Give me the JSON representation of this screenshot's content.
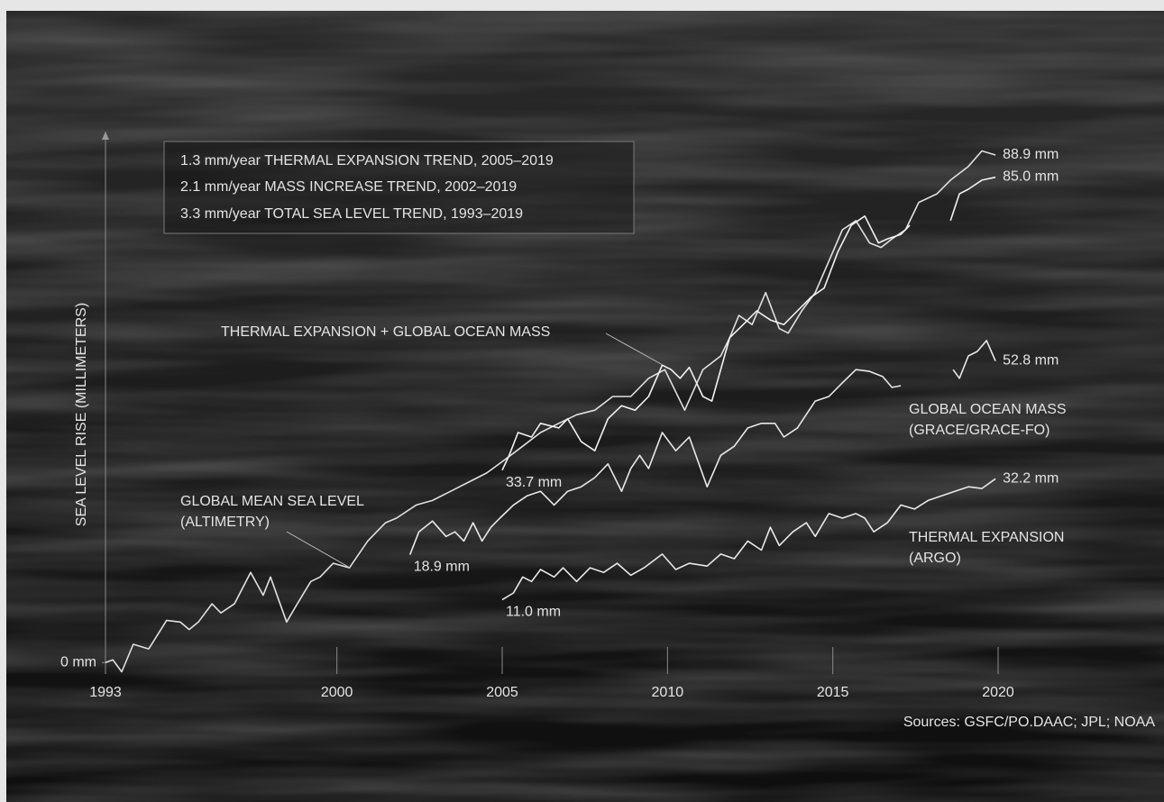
{
  "chart_data": {
    "type": "line",
    "y_label": "SEA LEVEL RISE (MILLIMETERS)",
    "info_box": [
      "1.3 mm/year THERMAL EXPANSION TREND, 2005–2019",
      "2.1 mm/year MASS INCREASE TREND, 2002–2019",
      "3.3 mm/year TOTAL SEA LEVEL TREND, 1993–2019"
    ],
    "source": "Sources: GSFC/PO.DAAC; JPL; NOAA",
    "xlim": [
      1993,
      2020
    ],
    "xticks": [
      1993,
      2000,
      2005,
      2010,
      2015,
      2020
    ],
    "ylim": [
      -2,
      93
    ],
    "yticks": [
      {
        "value": 0,
        "label": "0 mm"
      }
    ],
    "series": [
      {
        "label_lines": [
          "GLOBAL MEAN SEA LEVEL",
          "(ALTIMETRY)"
        ],
        "color": "#e0e0e0",
        "x": [
          1993.0,
          1993.22,
          1993.49,
          1993.84,
          1994.31,
          1994.85,
          1995.26,
          1995.53,
          1995.81,
          1996.22,
          1996.49,
          1996.9,
          1997.39,
          1997.77,
          1997.99,
          1998.48,
          1998.8,
          1999.21,
          1999.49,
          1999.89,
          2000.38,
          2000.93,
          2001.47,
          2001.8,
          2002.4,
          2002.89,
          2003.44,
          2003.98,
          2004.53,
          2005.07,
          2005.62,
          2006.16,
          2006.71,
          2007.25,
          2007.8,
          2008.34,
          2008.89,
          2009.43,
          2009.92,
          2010.52,
          2011.07,
          2011.61,
          2011.88,
          2012.16,
          2012.56,
          2012.97,
          2013.38,
          2013.65,
          2014.06,
          2014.47,
          2014.88,
          2015.29,
          2015.7,
          2016.11,
          2016.46,
          2016.79,
          2017.2,
          2017.6,
          2018.15,
          2018.56,
          2019.1,
          2019.51,
          2019.92
        ],
        "values": [
          0.0,
          0.5,
          -1.6,
          3.2,
          2.4,
          7.4,
          7.1,
          5.8,
          7.1,
          10.3,
          8.7,
          10.3,
          15.8,
          11.8,
          15.0,
          7.1,
          10.3,
          14.2,
          15.0,
          17.4,
          16.6,
          21.3,
          24.5,
          25.3,
          27.6,
          28.4,
          30.0,
          31.6,
          33.2,
          35.5,
          37.9,
          40.3,
          41.9,
          43.4,
          44.2,
          46.6,
          46.6,
          49.8,
          51.3,
          44.2,
          51.3,
          53.7,
          56.9,
          60.8,
          59.2,
          64.8,
          58.5,
          57.7,
          61.6,
          64.8,
          70.3,
          75.8,
          77.4,
          73.5,
          72.7,
          74.2,
          75.8,
          80.6,
          82.1,
          84.5,
          86.9,
          89.6,
          88.9
        ],
        "value_labels": [
          null,
          null,
          null,
          null,
          null,
          null,
          null,
          null,
          null,
          null,
          null,
          null,
          null,
          null,
          null,
          null,
          null,
          null,
          null,
          null,
          null,
          null,
          null,
          null,
          null,
          null,
          null,
          null,
          null,
          null,
          null,
          null,
          null,
          null,
          null,
          null,
          null,
          null,
          null,
          null,
          null,
          null,
          null,
          null,
          null,
          null,
          null,
          null,
          null,
          null,
          null,
          null,
          null,
          null,
          null,
          null,
          null,
          null,
          null,
          null,
          null,
          null,
          "88.9 mm"
        ]
      },
      {
        "label_lines": [
          "THERMAL EXPANSION + GLOBAL OCEAN MASS"
        ],
        "color": "#f2f2f2",
        "x": [
          2005.0,
          2005.21,
          2005.48,
          2005.89,
          2006.16,
          2006.71,
          2006.98,
          2007.39,
          2007.8,
          2008.2,
          2008.61,
          2009.02,
          2009.43,
          2009.84,
          2010.11,
          2010.38,
          2010.66,
          2011.07,
          2011.34,
          2011.88,
          2012.29,
          2012.7,
          2013.11,
          2013.52,
          2013.93,
          2014.34,
          2014.74,
          2015.15,
          2015.56,
          2015.97,
          2016.38,
          2016.65,
          2017.06,
          2017.33,
          2018.0,
          2018.56,
          2018.83,
          2019.1,
          2019.51,
          2019.92
        ],
        "values": [
          33.7,
          36.3,
          40.3,
          39.5,
          41.9,
          41.1,
          42.7,
          38.7,
          37.1,
          42.7,
          45.0,
          44.2,
          46.6,
          52.1,
          51.3,
          49.8,
          51.7,
          46.6,
          45.8,
          56.9,
          59.2,
          61.6,
          60.0,
          59.2,
          61.6,
          64.0,
          65.6,
          71.9,
          76.6,
          78.2,
          73.5,
          74.2,
          75.0,
          76.6,
          null,
          77.4,
          82.1,
          82.9,
          84.5,
          85.0
        ],
        "value_labels": [
          "33.7 mm",
          null,
          null,
          null,
          null,
          null,
          null,
          null,
          null,
          null,
          null,
          null,
          null,
          null,
          null,
          null,
          null,
          null,
          null,
          null,
          null,
          null,
          null,
          null,
          null,
          null,
          null,
          null,
          null,
          null,
          null,
          null,
          null,
          null,
          null,
          null,
          null,
          null,
          null,
          "85.0 mm"
        ]
      },
      {
        "label_lines": [
          "GLOBAL OCEAN MASS",
          "(GRACE/GRACE-FO)"
        ],
        "color": "#e8e8e8",
        "x": [
          2002.21,
          2002.48,
          2002.89,
          2003.3,
          2003.57,
          2003.84,
          2004.12,
          2004.39,
          2004.66,
          2004.93,
          2005.34,
          2005.75,
          2006.16,
          2006.57,
          2006.98,
          2007.39,
          2007.8,
          2008.2,
          2008.61,
          2008.89,
          2009.16,
          2009.43,
          2009.84,
          2010.25,
          2010.66,
          2011.2,
          2011.61,
          2012.02,
          2012.43,
          2012.84,
          2013.25,
          2013.52,
          2013.93,
          2014.47,
          2014.88,
          2015.29,
          2015.7,
          2016.11,
          2016.51,
          2016.79,
          2017.06,
          2018.0,
          2018.64,
          2018.83,
          2019.1,
          2019.37,
          2019.65,
          2019.92
        ],
        "values": [
          18.9,
          22.9,
          24.8,
          22.1,
          22.9,
          21.3,
          24.5,
          21.3,
          23.7,
          25.3,
          27.6,
          29.2,
          30.0,
          27.6,
          30.0,
          30.8,
          32.4,
          34.8,
          30.0,
          34.0,
          36.3,
          34.0,
          40.3,
          37.1,
          39.5,
          30.8,
          36.3,
          37.9,
          41.1,
          41.9,
          41.9,
          39.5,
          41.1,
          45.8,
          46.6,
          49.0,
          51.3,
          51.0,
          50.1,
          48.2,
          48.5,
          null,
          51.3,
          49.8,
          53.7,
          54.5,
          56.4,
          52.8
        ],
        "value_labels": [
          "18.9 mm",
          null,
          null,
          null,
          null,
          null,
          null,
          null,
          null,
          null,
          null,
          null,
          null,
          null,
          null,
          null,
          null,
          null,
          null,
          null,
          null,
          null,
          null,
          null,
          null,
          null,
          null,
          null,
          null,
          null,
          null,
          null,
          null,
          null,
          null,
          null,
          null,
          null,
          null,
          null,
          null,
          null,
          null,
          null,
          null,
          null,
          null,
          "52.8 mm"
        ]
      },
      {
        "label_lines": [
          "THERMAL EXPANSION",
          "(ARGO)"
        ],
        "color": "#e8e8e8",
        "x": [
          2005.0,
          2005.34,
          2005.62,
          2005.89,
          2006.16,
          2006.57,
          2006.84,
          2007.25,
          2007.66,
          2008.07,
          2008.48,
          2008.89,
          2009.29,
          2009.84,
          2010.25,
          2010.66,
          2011.2,
          2011.61,
          2012.02,
          2012.43,
          2012.84,
          2013.11,
          2013.38,
          2013.79,
          2014.2,
          2014.47,
          2014.88,
          2015.29,
          2015.7,
          2015.97,
          2016.24,
          2016.65,
          2017.06,
          2017.47,
          2017.88,
          2018.29,
          2018.69,
          2019.1,
          2019.51,
          2019.92
        ],
        "values": [
          11.0,
          12.2,
          15.0,
          14.2,
          16.3,
          15.0,
          16.6,
          14.2,
          16.6,
          15.8,
          17.4,
          15.3,
          16.6,
          19.0,
          16.3,
          17.4,
          16.9,
          19.0,
          18.2,
          21.3,
          19.7,
          23.7,
          20.5,
          22.9,
          24.5,
          22.1,
          26.1,
          25.3,
          26.1,
          25.3,
          22.9,
          24.5,
          27.6,
          26.9,
          28.4,
          29.2,
          30.0,
          30.8,
          30.5,
          32.2
        ],
        "value_labels": [
          "11.0 mm",
          null,
          null,
          null,
          null,
          null,
          null,
          null,
          null,
          null,
          null,
          null,
          null,
          null,
          null,
          null,
          null,
          null,
          null,
          null,
          null,
          null,
          null,
          null,
          null,
          null,
          null,
          null,
          null,
          null,
          null,
          null,
          null,
          null,
          null,
          null,
          null,
          null,
          null,
          "32.2 mm"
        ]
      }
    ]
  }
}
